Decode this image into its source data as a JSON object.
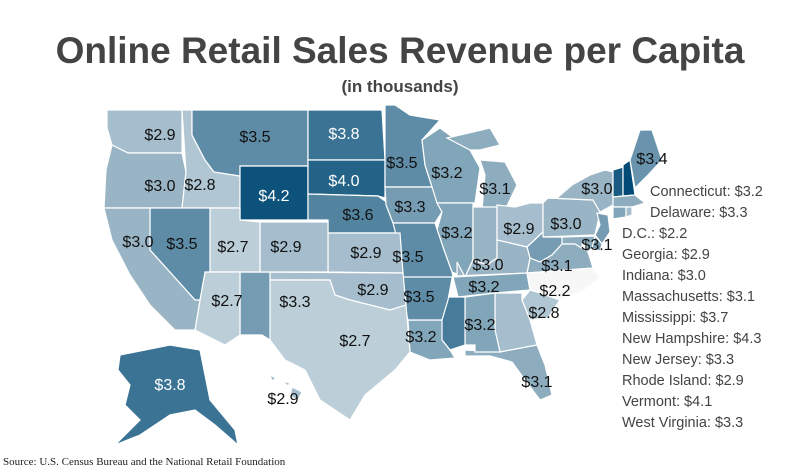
{
  "title": "Online Retail Sales Revenue per Capita",
  "subtitle": "(in thousands)",
  "source": "Source: U.S. Census Bureau and the National Retail Foundation",
  "chart_data": {
    "type": "choropleth",
    "unit": "$ thousands per capita",
    "color_scale": {
      "min": 2.2,
      "max": 4.3,
      "low_color": "#f7f7f7",
      "high_color": "#004a75"
    },
    "values": {
      "WA": 2.9,
      "OR": 3.0,
      "ID": 2.8,
      "MT": 3.5,
      "WY": 4.2,
      "ND": 3.8,
      "SD": 4.0,
      "NE": 3.6,
      "MN": 3.5,
      "WI": 3.2,
      "MI": 3.1,
      "IA": 3.3,
      "IL": 3.2,
      "IN": 3.0,
      "OH": 2.9,
      "PA": 3.0,
      "NY": 3.0,
      "ME": 3.4,
      "VT": 4.1,
      "NH": 4.3,
      "MA": 3.1,
      "CT": 3.2,
      "RI": 2.9,
      "NJ": 3.3,
      "DE": 3.3,
      "MD": 3.1,
      "DC": 2.2,
      "WV": 3.3,
      "VA": 3.1,
      "KY": 3.0,
      "TN": 3.2,
      "NC": 2.2,
      "SC": 2.8,
      "GA": 2.9,
      "FL": 3.1,
      "AL": 3.2,
      "MS": 3.7,
      "LA": 3.2,
      "AR": 3.5,
      "MO": 3.5,
      "KS": 2.9,
      "OK": 2.9,
      "TX": 2.7,
      "NM": 3.3,
      "CO": 2.9,
      "UT": 2.7,
      "AZ": 2.7,
      "NV": 3.5,
      "CA": 3.0,
      "AK": 3.8,
      "HI": 2.9
    },
    "legend": [
      "Connecticut: $3.2",
      "Delaware: $3.3",
      "D.C.: $2.2",
      "Georgia: $2.9",
      "Indiana: $3.0",
      "Massachusetts: $3.1",
      "Mississippi: $3.7",
      "New Hampshire: $4.3",
      "New Jersey: $3.3",
      "Rhode Island: $2.9",
      "Vermont: $4.1",
      "West Virginia: $3.3"
    ]
  }
}
